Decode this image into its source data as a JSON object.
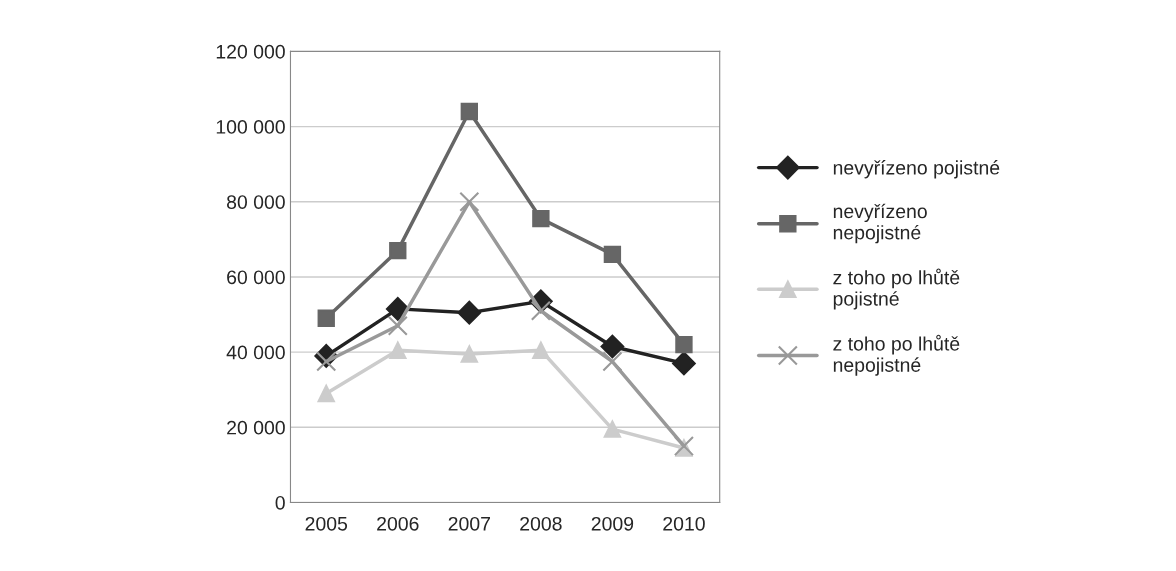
{
  "chart_data": {
    "type": "line",
    "categories": [
      "2005",
      "2006",
      "2007",
      "2008",
      "2009",
      "2010"
    ],
    "series": [
      {
        "name": "nevyřízeno pojistné",
        "color": "#222222",
        "marker": "diamond",
        "values": [
          39000,
          51500,
          50500,
          53500,
          41500,
          37000
        ]
      },
      {
        "name": "nevyřízeno\nnepojistné",
        "color": "#666666",
        "marker": "square",
        "values": [
          49000,
          67000,
          104000,
          75500,
          66000,
          42000
        ]
      },
      {
        "name": "z toho po lhůtě\npojistné",
        "color": "#cccccc",
        "marker": "triangle",
        "values": [
          29000,
          40500,
          39500,
          40500,
          19500,
          14500
        ]
      },
      {
        "name": "z toho po lhůtě\nnepojistné",
        "color": "#999999",
        "marker": "cross",
        "values": [
          37500,
          47000,
          80000,
          51000,
          37500,
          15000
        ]
      }
    ],
    "ylim": [
      0,
      120000
    ],
    "yticks": [
      0,
      {
        "value": 20000,
        "label": "20 000"
      },
      {
        "value": 40000,
        "label": "40 000"
      },
      {
        "value": 60000,
        "label": "60 000"
      },
      {
        "value": 80000,
        "label": "80 000"
      },
      {
        "value": 100000,
        "label": "100 000"
      },
      {
        "value": 120000,
        "label": "120 000"
      }
    ],
    "grid": "y",
    "legend": "right"
  }
}
